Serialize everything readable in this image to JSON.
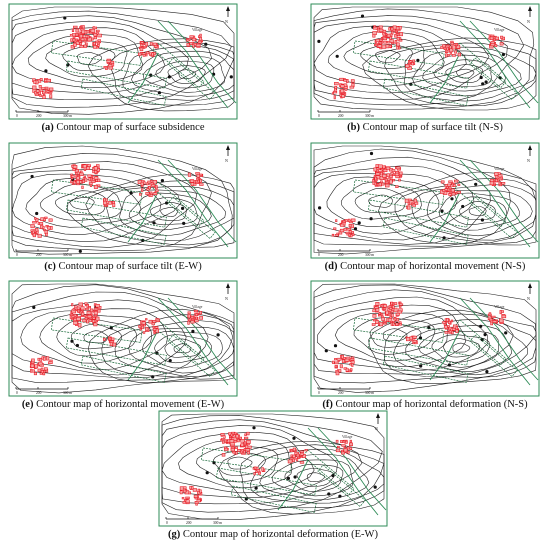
{
  "figure": {
    "panels": [
      {
        "letter": "(a)",
        "title": "Contour map of surface subsidence",
        "seed": 1
      },
      {
        "letter": "(b)",
        "title": "Contour map of surface tilt (N-S)",
        "seed": 2
      },
      {
        "letter": "(c)",
        "title": "Contour map of surface tilt (E-W)",
        "seed": 3
      },
      {
        "letter": "(d)",
        "title": "Contour map of horizontal movement (N-S)",
        "seed": 4
      },
      {
        "letter": "(e)",
        "title": "Contour map of horizontal movement (E-W)",
        "seed": 5
      },
      {
        "letter": "(f)",
        "title": "Contour map of horizontal deformation (N-S)",
        "seed": 6
      },
      {
        "letter": "(g)",
        "title": "Contour map of horizontal deformation (E-W)",
        "seed": 7
      }
    ],
    "map_labels": {
      "village": "Village",
      "scale_zero": "0",
      "scale_mid": "200",
      "scale_end": "300 m",
      "north": "N"
    },
    "colors": {
      "frame": "#2e8b57",
      "contour": "#222222",
      "building": "#e8202a",
      "building_fill": "#f7a6a6",
      "road": "#2e8b57",
      "workface": "#1a6a3a"
    }
  }
}
